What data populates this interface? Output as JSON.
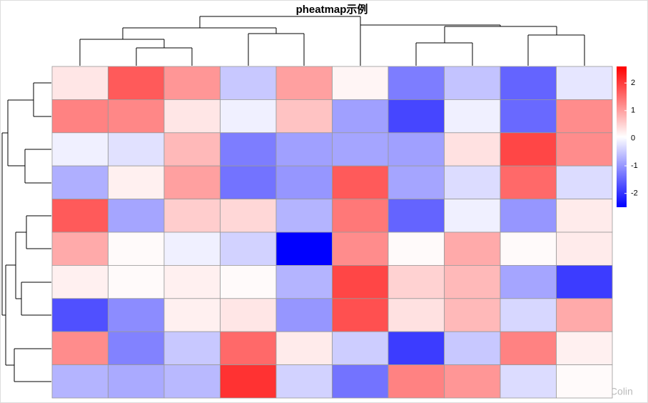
{
  "chart_data": {
    "type": "heatmap",
    "title": "pheatmap示例",
    "values": [
      [
        0.3,
        1.7,
        1.1,
        -0.5,
        1.0,
        0.15,
        -1.25,
        -0.55,
        -1.5,
        -0.2
      ],
      [
        1.3,
        1.25,
        0.3,
        -0.1,
        0.65,
        -0.9,
        -1.8,
        -0.1,
        -1.45,
        1.2
      ],
      [
        -0.1,
        -0.25,
        0.75,
        -1.25,
        -0.9,
        -0.85,
        -0.9,
        0.35,
        1.9,
        1.2
      ],
      [
        -0.75,
        0.2,
        1.0,
        -1.35,
        -1.0,
        1.7,
        -0.85,
        -0.3,
        1.55,
        -0.3
      ],
      [
        1.7,
        -0.85,
        0.55,
        0.45,
        -0.7,
        1.4,
        -1.5,
        -0.1,
        -1.0,
        0.25
      ],
      [
        0.9,
        0.1,
        -0.1,
        -0.4,
        -2.5,
        1.2,
        0.1,
        0.9,
        0.1,
        0.25
      ],
      [
        0.2,
        0.1,
        0.2,
        0.1,
        -0.7,
        1.9,
        0.5,
        0.75,
        -0.85,
        -1.9
      ],
      [
        -1.7,
        -1.1,
        0.2,
        0.3,
        -1.0,
        1.8,
        0.35,
        0.75,
        -0.35,
        0.9
      ],
      [
        1.2,
        -1.2,
        -0.5,
        1.55,
        0.25,
        -0.45,
        -1.9,
        -0.5,
        1.3,
        0.2
      ],
      [
        -0.7,
        -0.8,
        -0.65,
        2.1,
        -0.4,
        -1.35,
        1.3,
        1.1,
        -0.3,
        0.1
      ]
    ],
    "colors": [
      "#0000ff",
      "#ffffff",
      "#ff0000"
    ],
    "colorbar": {
      "lim": [
        -2.5,
        2.6
      ],
      "ticks": [
        2,
        1,
        0,
        -1,
        -2
      ]
    },
    "watermark": "CSDN @Colin"
  }
}
